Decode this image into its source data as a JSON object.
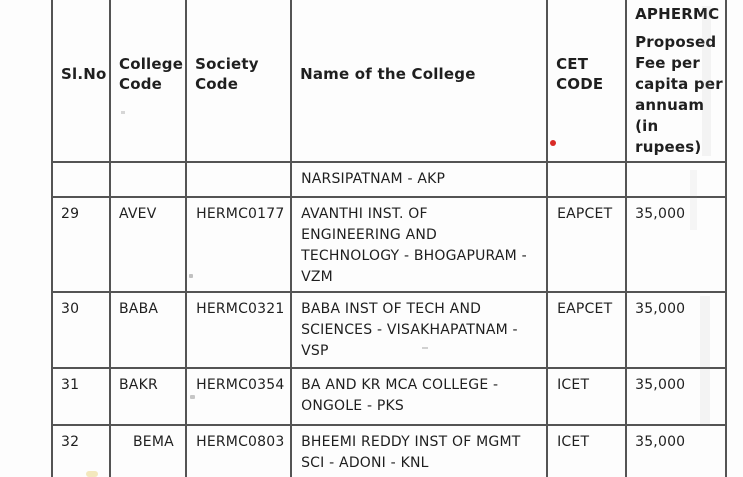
{
  "table": {
    "header": {
      "sl_no": "Sl.No",
      "college_code": "College\nCode",
      "society_code": "Society\nCode",
      "college_name": "Name of the College",
      "cet_code": "CET\nCODE",
      "fee_line1": "APHERMC",
      "fee_line2": "Proposed\nFee per\ncapita per\nannuam\n(in\nrupees)"
    },
    "rows": [
      {
        "sl_no": "",
        "college_code": "",
        "society_code": "",
        "college_name": "NARSIPATNAM - AKP",
        "cet_code": "",
        "fee": ""
      },
      {
        "sl_no": "29",
        "college_code": "AVEV",
        "society_code": "HERMC0177",
        "college_name": "AVANTHI INST. OF\nENGINEERING AND\nTECHNOLOGY - BHOGAPURAM -\nVZM",
        "cet_code": "EAPCET",
        "fee": "35,000"
      },
      {
        "sl_no": "30",
        "college_code": "BABA",
        "society_code": "HERMC0321",
        "college_name": "BABA INST OF TECH AND\nSCIENCES - VISAKHAPATNAM -\nVSP",
        "cet_code": "EAPCET",
        "fee": "35,000"
      },
      {
        "sl_no": "31",
        "college_code": "BAKR",
        "society_code": "HERMC0354",
        "college_name": "BA AND KR MCA COLLEGE -\nONGOLE - PKS",
        "cet_code": "ICET",
        "fee": "35,000"
      },
      {
        "sl_no": "32",
        "college_code": "BEMA",
        "society_code": "HERMC0803",
        "college_name": "BHEEMI REDDY INST OF MGMT\nSCI - ADONI - KNL",
        "cet_code": "ICET",
        "fee": "35,000"
      }
    ]
  },
  "artifacts": {
    "red_dot_color": "#d92b26"
  }
}
